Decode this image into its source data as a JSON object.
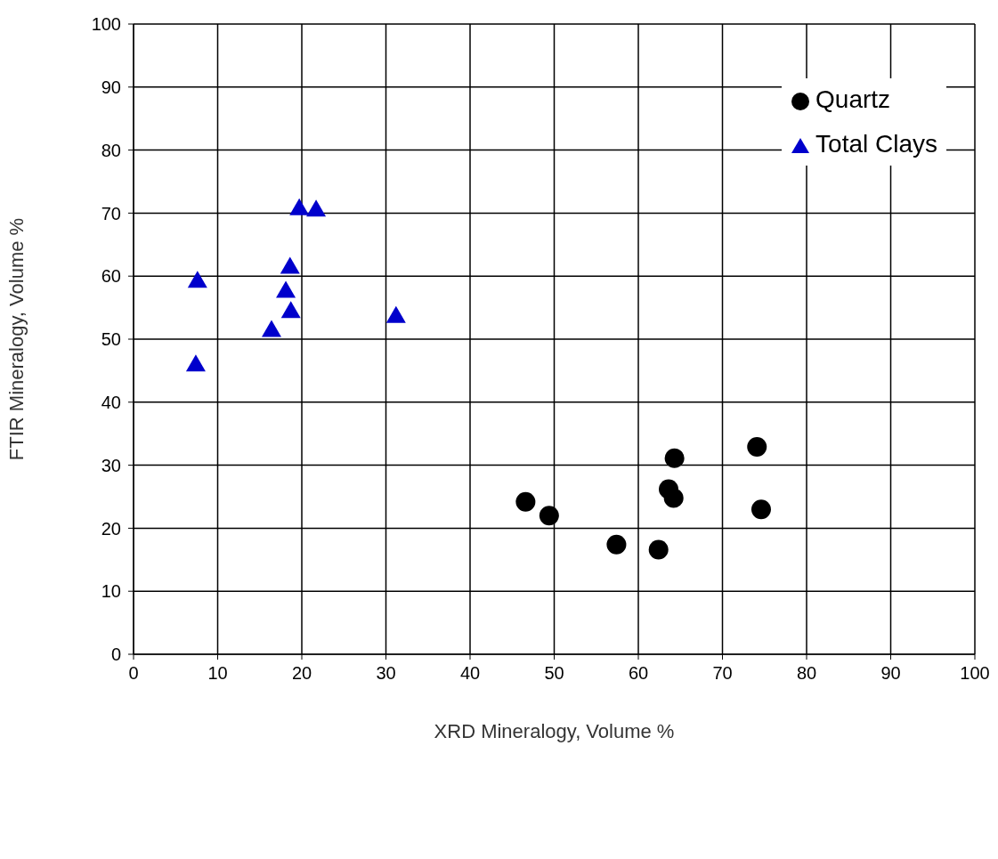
{
  "chart_data": {
    "type": "scatter",
    "xlabel": "XRD Mineralogy, Volume %",
    "ylabel": "FTIR Mineralogy, Volume %",
    "xlim": [
      0,
      100
    ],
    "xticks": [
      0,
      10,
      20,
      30,
      40,
      50,
      60,
      70,
      80,
      90,
      100
    ],
    "ylim": [
      0,
      100
    ],
    "yticks": [
      0,
      10,
      20,
      30,
      40,
      50,
      60,
      70,
      80,
      90,
      100
    ],
    "grid": true,
    "legend": "top right",
    "series": [
      {
        "name": "Quartz",
        "color": "#000000",
        "marker": "circle",
        "x": [
          46.6,
          49.4,
          57.4,
          62.4,
          63.6,
          64.2,
          64.3,
          74.1,
          74.6
        ],
        "values": [
          24.2,
          22.0,
          17.4,
          16.6,
          26.2,
          24.8,
          31.1,
          32.9,
          23.0
        ]
      },
      {
        "name": "Total Clays",
        "color": "#0000cc",
        "marker": "triangle",
        "x": [
          7.6,
          7.4,
          16.4,
          18.1,
          18.7,
          18.6,
          19.7,
          21.7,
          31.2
        ],
        "values": [
          59.3,
          46.0,
          51.5,
          57.7,
          54.5,
          61.5,
          70.8,
          70.6,
          53.7
        ]
      }
    ]
  }
}
